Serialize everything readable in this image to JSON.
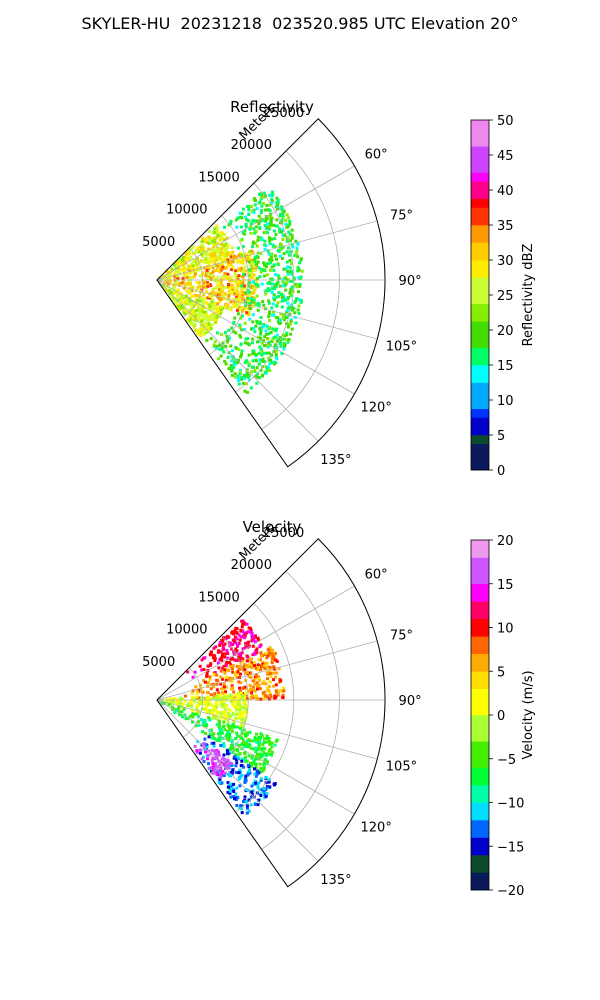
{
  "figure": {
    "suptitle": "SKYLER-HU  20231218  023520.985 UTC Elevation 20°"
  },
  "chart_data": [
    {
      "type": "polar-sector",
      "title": "Reflectivity",
      "radial_label": "Meters",
      "r_ticks": [
        5000,
        10000,
        15000,
        20000,
        25000
      ],
      "r_tick_labels": [
        "5000",
        "10000",
        "15000",
        "20000",
        "25000"
      ],
      "theta_ticks_deg": [
        60,
        75,
        90,
        105,
        120,
        135
      ],
      "theta_tick_labels": [
        "60°",
        "75°",
        "90°",
        "105°",
        "120°",
        "135°"
      ],
      "theta_range_deg": [
        45,
        145
      ],
      "r_max": 25000,
      "grid": true,
      "colorbar": {
        "label": "Reflectivity dBZ",
        "range": [
          0,
          50
        ],
        "ticks": [
          0,
          5,
          10,
          15,
          20,
          25,
          30,
          35,
          40,
          45,
          50
        ],
        "tick_labels": [
          "0",
          "5",
          "10",
          "15",
          "20",
          "25",
          "30",
          "35",
          "40",
          "45",
          "50"
        ],
        "colormap": [
          [
            0,
            "#0a1a5a"
          ],
          [
            4,
            "#0b4a2a"
          ],
          [
            5,
            "#0000cc"
          ],
          [
            7,
            "#0033ff"
          ],
          [
            9,
            "#00aaff"
          ],
          [
            12,
            "#00ffff"
          ],
          [
            15,
            "#00ff66"
          ],
          [
            18,
            "#44dd00"
          ],
          [
            21,
            "#88ee00"
          ],
          [
            24,
            "#ccff33"
          ],
          [
            27,
            "#ffee00"
          ],
          [
            30,
            "#ffcc00"
          ],
          [
            33,
            "#ff9900"
          ],
          [
            35,
            "#ff3300"
          ],
          [
            37,
            "#ff0000"
          ],
          [
            39,
            "#ff0088"
          ],
          [
            41,
            "#ff00ff"
          ],
          [
            43,
            "#cc44ff"
          ],
          [
            46,
            "#ee88ee"
          ],
          [
            50,
            "#ffeeff"
          ]
        ]
      },
      "echo_bands": [
        {
          "theta": [
            47,
            72
          ],
          "r": [
            0,
            9000
          ],
          "value_range": [
            22,
            32
          ]
        },
        {
          "theta": [
            72,
            112
          ],
          "r": [
            0,
            11000
          ],
          "value_range": [
            24,
            36
          ]
        },
        {
          "theta": [
            112,
            143
          ],
          "r": [
            0,
            8000
          ],
          "value_range": [
            22,
            30
          ]
        },
        {
          "theta": [
            50,
            110
          ],
          "r": [
            9000,
            16000
          ],
          "value_range": [
            14,
            22
          ]
        },
        {
          "theta": [
            112,
            142
          ],
          "r": [
            8000,
            16000
          ],
          "value_range": [
            14,
            22
          ]
        }
      ]
    },
    {
      "type": "polar-sector",
      "title": "Velocity",
      "radial_label": "Meters",
      "r_ticks": [
        5000,
        10000,
        15000,
        20000,
        25000
      ],
      "r_tick_labels": [
        "5000",
        "10000",
        "15000",
        "20000",
        "25000"
      ],
      "theta_ticks_deg": [
        60,
        75,
        90,
        105,
        120,
        135
      ],
      "theta_tick_labels": [
        "60°",
        "75°",
        "90°",
        "105°",
        "120°",
        "135°"
      ],
      "theta_range_deg": [
        45,
        145
      ],
      "r_max": 25000,
      "grid": true,
      "colorbar": {
        "label": "Velocity (m/s)",
        "range": [
          -20,
          20
        ],
        "ticks": [
          -20,
          -15,
          -10,
          -5,
          0,
          5,
          10,
          15,
          20
        ],
        "tick_labels": [
          "−20",
          "−15",
          "−10",
          "−5",
          "0",
          "5",
          "10",
          "15",
          "20"
        ],
        "colormap": [
          [
            -20,
            "#0a1a5a"
          ],
          [
            -18,
            "#0b4a2a"
          ],
          [
            -16,
            "#0000cc"
          ],
          [
            -14,
            "#0066ff"
          ],
          [
            -12,
            "#00ddff"
          ],
          [
            -10,
            "#00ffaa"
          ],
          [
            -8,
            "#00ff33"
          ],
          [
            -6,
            "#44ee00"
          ],
          [
            -3,
            "#aaff33"
          ],
          [
            0,
            "#ffff00"
          ],
          [
            3,
            "#ffdd00"
          ],
          [
            5,
            "#ffaa00"
          ],
          [
            7,
            "#ff6600"
          ],
          [
            9,
            "#ff0000"
          ],
          [
            11,
            "#ff0066"
          ],
          [
            13,
            "#ff00ff"
          ],
          [
            15,
            "#cc55ff"
          ],
          [
            18,
            "#ee99ee"
          ],
          [
            20,
            "#ffeeff"
          ]
        ]
      },
      "echo_bands": [
        {
          "theta": [
            47,
            65
          ],
          "r": [
            4000,
            13000
          ],
          "value_range": [
            9,
            14
          ]
        },
        {
          "theta": [
            65,
            90
          ],
          "r": [
            3000,
            14000
          ],
          "value_range": [
            4,
            10
          ]
        },
        {
          "theta": [
            85,
            108
          ],
          "r": [
            0,
            10000
          ],
          "value_range": [
            -3,
            3
          ]
        },
        {
          "theta": [
            108,
            125
          ],
          "r": [
            0,
            14000
          ],
          "value_range": [
            -9,
            -4
          ]
        },
        {
          "theta": [
            125,
            143
          ],
          "r": [
            6000,
            16000
          ],
          "value_range": [
            -16,
            -10
          ]
        },
        {
          "theta": [
            130,
            143
          ],
          "r": [
            6000,
            11000
          ],
          "value_range": [
            14,
            18
          ]
        }
      ]
    }
  ]
}
